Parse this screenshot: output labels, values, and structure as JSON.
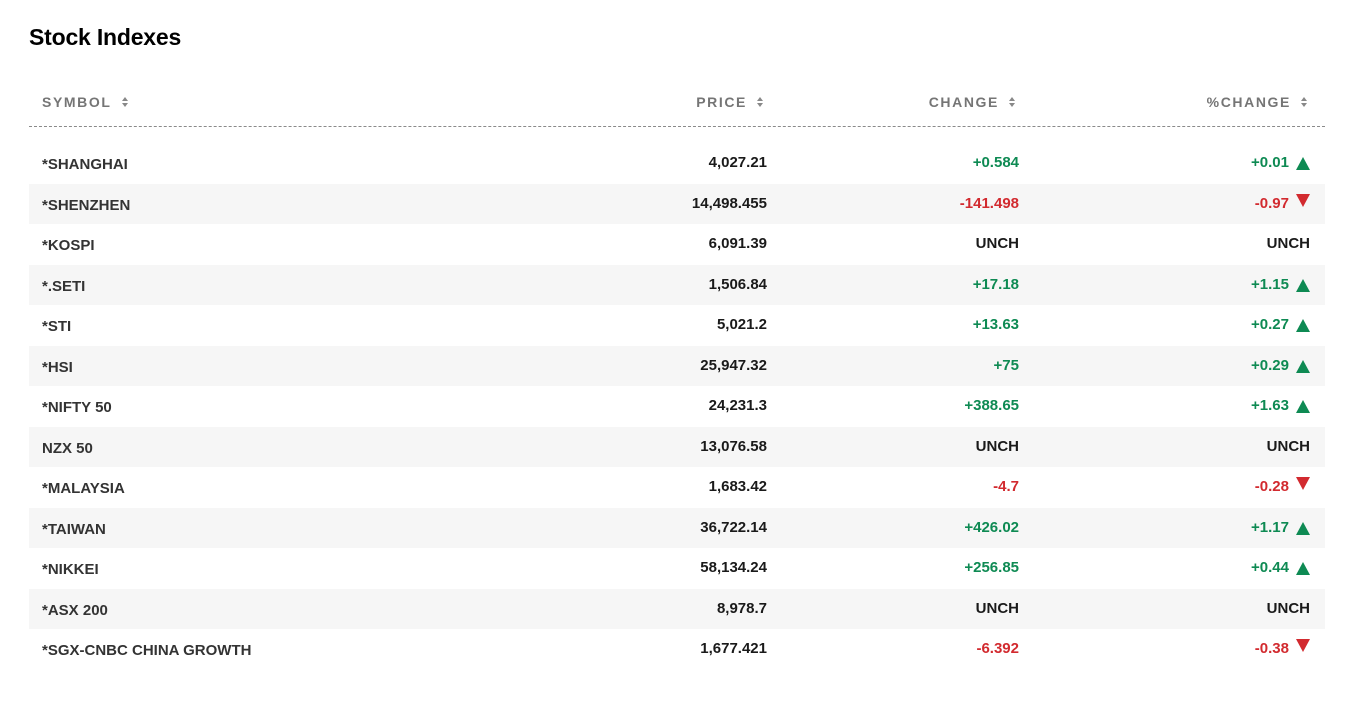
{
  "title": "Stock Indexes",
  "columns": {
    "symbol": "SYMBOL",
    "price": "PRICE",
    "change": "CHANGE",
    "pct_change": "%CHANGE"
  },
  "colors": {
    "positive": "#0e8a53",
    "negative": "#d22a2f",
    "stripe": "#f6f6f6"
  },
  "rows": [
    {
      "symbol": "*SHANGHAI",
      "price": "4,027.21",
      "change": "+0.584",
      "pct": "+0.01",
      "dir": "up"
    },
    {
      "symbol": "*SHENZHEN",
      "price": "14,498.455",
      "change": "-141.498",
      "pct": "-0.97",
      "dir": "down"
    },
    {
      "symbol": "*KOSPI",
      "price": "6,091.39",
      "change": "UNCH",
      "pct": "UNCH",
      "dir": "none"
    },
    {
      "symbol": "*.SETI",
      "price": "1,506.84",
      "change": "+17.18",
      "pct": "+1.15",
      "dir": "up"
    },
    {
      "symbol": "*STI",
      "price": "5,021.2",
      "change": "+13.63",
      "pct": "+0.27",
      "dir": "up"
    },
    {
      "symbol": "*HSI",
      "price": "25,947.32",
      "change": "+75",
      "pct": "+0.29",
      "dir": "up"
    },
    {
      "symbol": "*NIFTY 50",
      "price": "24,231.3",
      "change": "+388.65",
      "pct": "+1.63",
      "dir": "up"
    },
    {
      "symbol": "NZX 50",
      "price": "13,076.58",
      "change": "UNCH",
      "pct": "UNCH",
      "dir": "none"
    },
    {
      "symbol": "*MALAYSIA",
      "price": "1,683.42",
      "change": "-4.7",
      "pct": "-0.28",
      "dir": "down"
    },
    {
      "symbol": "*TAIWAN",
      "price": "36,722.14",
      "change": "+426.02",
      "pct": "+1.17",
      "dir": "up"
    },
    {
      "symbol": "*NIKKEI",
      "price": "58,134.24",
      "change": "+256.85",
      "pct": "+0.44",
      "dir": "up"
    },
    {
      "symbol": "*ASX 200",
      "price": "8,978.7",
      "change": "UNCH",
      "pct": "UNCH",
      "dir": "none"
    },
    {
      "symbol": "*SGX-CNBC CHINA GROWTH",
      "price": "1,677.421",
      "change": "-6.392",
      "pct": "-0.38",
      "dir": "down"
    }
  ]
}
